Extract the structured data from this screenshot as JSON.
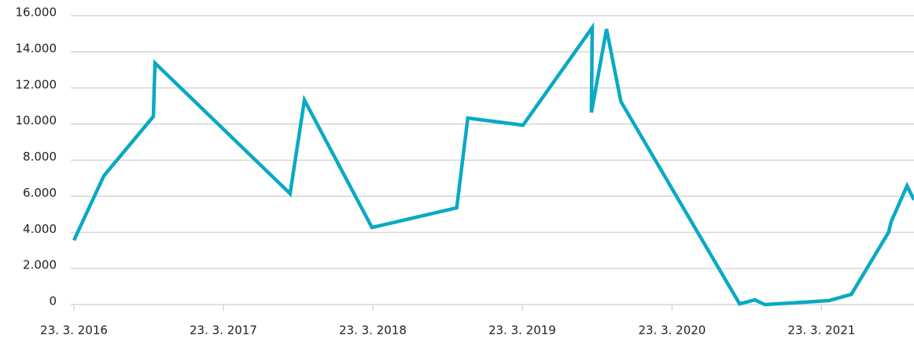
{
  "chart_data": {
    "type": "line",
    "x": [
      "2016-03-23",
      "2016-06-04",
      "2016-10-03",
      "2016-10-07",
      "2017-09-02",
      "2017-10-07",
      "2018-03-21",
      "2018-10-14",
      "2018-11-10",
      "2019-03-25",
      "2019-09-10",
      "2019-09-08",
      "2019-10-15",
      "2019-11-19",
      "2020-09-04",
      "2020-10-11",
      "2020-11-05",
      "2021-04-11",
      "2021-06-04",
      "2021-09-03",
      "2021-09-09",
      "2021-10-18",
      "2021-11-04"
    ],
    "series": [
      {
        "color": "#0aa9c4",
        "values": [
          3560,
          7130,
          10420,
          13380,
          6150,
          11330,
          4270,
          5360,
          10330,
          9940,
          15340,
          10640,
          15260,
          11250,
          40,
          260,
          0,
          220,
          570,
          4010,
          4580,
          6580,
          5800
        ]
      }
    ],
    "xlim": [
      "2016-03-23",
      "2021-11-04"
    ],
    "xticks": [
      {
        "value": "2016-03-23",
        "label": "23. 3. 2016"
      },
      {
        "value": "2017-03-23",
        "label": "23. 3. 2017"
      },
      {
        "value": "2018-03-23",
        "label": "23. 3. 2018"
      },
      {
        "value": "2019-03-23",
        "label": "23. 3. 2019"
      },
      {
        "value": "2020-03-23",
        "label": "23. 3. 2020"
      },
      {
        "value": "2021-03-23",
        "label": "23. 3. 2021"
      }
    ],
    "ylim": [
      0,
      16000
    ],
    "yticks": [
      0,
      {
        "value": 2000,
        "label": "2.000"
      },
      {
        "value": 4000,
        "label": "4.000"
      },
      {
        "value": 6000,
        "label": "6.000"
      },
      {
        "value": 8000,
        "label": "8.000"
      },
      {
        "value": 10000,
        "label": "10.000"
      },
      {
        "value": 12000,
        "label": "12.000"
      },
      {
        "value": 14000,
        "label": "14.000"
      },
      {
        "value": 16000,
        "label": "16.000"
      }
    ],
    "grid": true
  }
}
